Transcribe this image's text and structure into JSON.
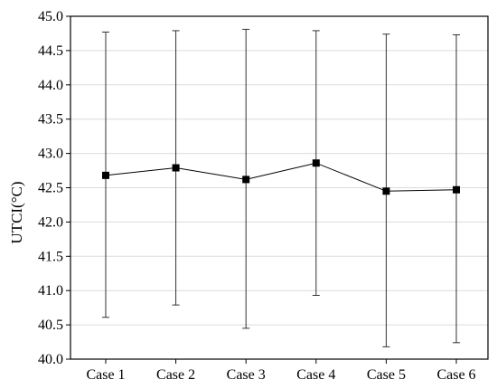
{
  "chart_data": {
    "type": "line",
    "title": "",
    "xlabel": "",
    "ylabel": "UTCI(°C)",
    "ylim": [
      40.0,
      45.0
    ],
    "yticks": [
      "40.0",
      "40.5",
      "41.0",
      "41.5",
      "42.0",
      "42.5",
      "43.0",
      "43.5",
      "44.0",
      "44.5",
      "45.0"
    ],
    "grid": true,
    "legend": "none",
    "categories": [
      "Case 1",
      "Case 2",
      "Case 3",
      "Case 4",
      "Case 5",
      "Case 6"
    ],
    "series": [
      {
        "mean": [
          42.68,
          42.79,
          42.62,
          42.86,
          42.45,
          42.47
        ],
        "min": [
          40.61,
          40.79,
          40.45,
          40.93,
          40.18,
          40.24
        ],
        "max": [
          44.77,
          44.79,
          44.81,
          44.79,
          44.74,
          44.73
        ]
      }
    ],
    "colors": {
      "line": "#000000",
      "marker": "#000000",
      "grid": "#dcdcdc",
      "errorbar": "#333333"
    }
  }
}
